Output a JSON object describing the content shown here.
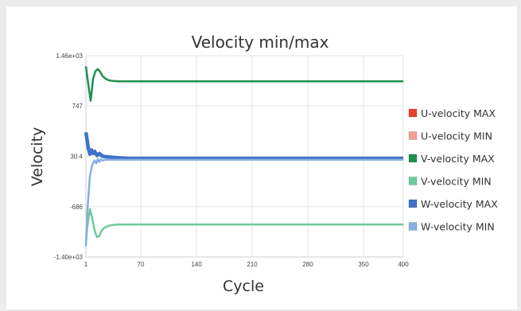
{
  "chart_data": {
    "type": "line",
    "title": "Velocity min/max",
    "xlabel": "Cycle",
    "ylabel": "Velocity",
    "xlim": [
      1,
      400
    ],
    "ylim": [
      -1400,
      1460
    ],
    "x_ticks": [
      {
        "value": 1,
        "label": "1"
      },
      {
        "value": 70,
        "label": "70"
      },
      {
        "value": 140,
        "label": "140"
      },
      {
        "value": 210,
        "label": "210"
      },
      {
        "value": 280,
        "label": "280"
      },
      {
        "value": 350,
        "label": "350"
      },
      {
        "value": 400,
        "label": "400"
      }
    ],
    "y_ticks": [
      {
        "value": 1460,
        "label": "1.46e+03"
      },
      {
        "value": 747,
        "label": "747"
      },
      {
        "value": 30.4,
        "label": "30.4"
      },
      {
        "value": -686,
        "label": "-686"
      },
      {
        "value": -1400,
        "label": "-1.40e+03"
      }
    ],
    "grid": true,
    "legend_position": "right",
    "series": [
      {
        "name": "U-velocity MAX",
        "color": "#e8412c",
        "width": 2,
        "x": [
          1,
          400
        ],
        "y": [
          0,
          0
        ]
      },
      {
        "name": "U-velocity MIN",
        "color": "#f4a18f",
        "width": 2,
        "x": [
          1,
          400
        ],
        "y": [
          0,
          0
        ]
      },
      {
        "name": "V-velocity MAX",
        "color": "#1f8f4e",
        "width": 2.5,
        "x": [
          1,
          4,
          7,
          10,
          13,
          16,
          19,
          22,
          26,
          30,
          35,
          42,
          50,
          70,
          140,
          210,
          280,
          350,
          400
        ],
        "y": [
          1310,
          1050,
          820,
          1130,
          1240,
          1270,
          1230,
          1170,
          1130,
          1110,
          1100,
          1095,
          1095,
          1095,
          1095,
          1095,
          1095,
          1095,
          1095
        ]
      },
      {
        "name": "V-velocity MIN",
        "color": "#6fc99a",
        "width": 2.5,
        "x": [
          1,
          3,
          6,
          9,
          12,
          15,
          18,
          21,
          25,
          30,
          35,
          42,
          50,
          70,
          140,
          210,
          280,
          350,
          400
        ],
        "y": [
          -1190,
          -950,
          -720,
          -850,
          -1030,
          -1120,
          -1100,
          -1020,
          -980,
          -955,
          -945,
          -940,
          -940,
          -940,
          -940,
          -940,
          -940,
          -940,
          -940
        ]
      },
      {
        "name": "W-velocity MAX",
        "color": "#3e73c6",
        "width": 4.5,
        "x": [
          1,
          2,
          4,
          6,
          8,
          10,
          12,
          15,
          18,
          22,
          30,
          40,
          55,
          70,
          140,
          210,
          280,
          350,
          400
        ],
        "y": [
          370,
          300,
          150,
          60,
          120,
          70,
          100,
          40,
          70,
          30,
          20,
          10,
          0,
          0,
          0,
          0,
          0,
          0,
          0
        ]
      },
      {
        "name": "W-velocity MIN",
        "color": "#86aee3",
        "width": 2.5,
        "x": [
          1,
          3,
          6,
          9,
          12,
          14,
          16,
          18,
          20,
          22,
          25,
          30,
          40,
          70,
          140,
          210,
          280,
          350,
          400
        ],
        "y": [
          -1250,
          -720,
          -250,
          -90,
          -30,
          -70,
          -10,
          -50,
          -10,
          -30,
          -20,
          -20,
          -20,
          -20,
          -20,
          -20,
          -20,
          -20,
          -20
        ]
      }
    ]
  }
}
